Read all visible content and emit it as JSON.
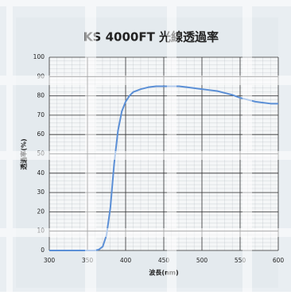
{
  "chart_data": {
    "type": "line",
    "title": "KS 4000FT 光線透過率",
    "xlabel": "波長(nm)",
    "ylabel": "透過率(%)",
    "x": [
      300,
      350,
      360,
      365,
      370,
      375,
      380,
      385,
      390,
      395,
      400,
      405,
      410,
      420,
      430,
      440,
      450,
      460,
      470,
      480,
      490,
      500,
      510,
      520,
      530,
      540,
      550,
      560,
      570,
      580,
      590,
      600
    ],
    "series": [
      {
        "name": "KS 4000FT",
        "color": "#5b8fd6",
        "values": [
          0,
          0,
          0,
          0.5,
          2,
          8,
          22,
          45,
          62,
          72,
          77,
          80,
          82,
          83.5,
          84.5,
          85,
          85,
          85,
          85,
          84.5,
          84,
          83.5,
          83,
          82.5,
          81.5,
          80.5,
          79,
          78,
          77,
          76.5,
          76,
          76
        ]
      }
    ],
    "xlim": [
      300,
      600
    ],
    "xticks": [
      300,
      350,
      400,
      450,
      500,
      550,
      600
    ],
    "ylim": [
      0,
      100
    ],
    "yticks": [
      0,
      10,
      20,
      30,
      40,
      50,
      60,
      70,
      80,
      90,
      100
    ],
    "grid": true
  }
}
